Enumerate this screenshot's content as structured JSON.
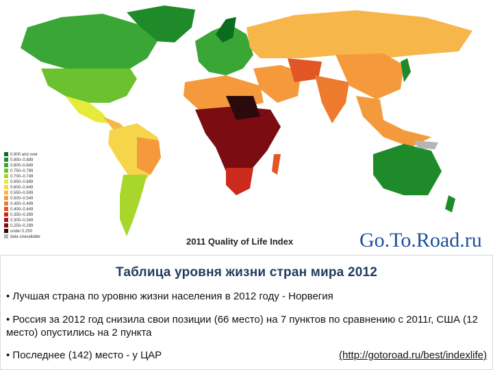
{
  "map": {
    "title": "2011 Quality of Life Index",
    "logo": "Go.To.Road.ru",
    "legend": [
      {
        "label": "0.900 and over",
        "color": "#0b6b1f"
      },
      {
        "label": "0.850–0.899",
        "color": "#1f8a2a"
      },
      {
        "label": "0.800–0.849",
        "color": "#3aa636"
      },
      {
        "label": "0.750–0.799",
        "color": "#6cc12e"
      },
      {
        "label": "0.700–0.749",
        "color": "#a8d62a"
      },
      {
        "label": "0.650–0.699",
        "color": "#e6ea3a"
      },
      {
        "label": "0.600–0.649",
        "color": "#f6d54a"
      },
      {
        "label": "0.550–0.599",
        "color": "#f7b64a"
      },
      {
        "label": "0.500–0.549",
        "color": "#f49a3c"
      },
      {
        "label": "0.450–0.499",
        "color": "#ee7a2e"
      },
      {
        "label": "0.400–0.449",
        "color": "#e25524"
      },
      {
        "label": "0.350–0.399",
        "color": "#cc2a1c"
      },
      {
        "label": "0.300–0.349",
        "color": "#a8151a"
      },
      {
        "label": "0.250–0.299",
        "color": "#7a0c12"
      },
      {
        "label": "under 0.250",
        "color": "#2a0a0a"
      },
      {
        "label": "data unavailable",
        "color": "#b5b5b5"
      }
    ]
  },
  "slide": {
    "title": "Таблица уровня жизни стран мира 2012",
    "bullets": [
      "• Лучшая страна по уровню жизни населения в 2012 году - Норвегия",
      "• Россия за 2012 год снизила свои позиции (66 место) на 7 пунктов по сравнению с 2011г, США (12 место) опустились на 2 пункта",
      "• Последнее (142) место - у ЦАР"
    ],
    "link": "(http://gotoroad.ru/best/indexlife)"
  }
}
